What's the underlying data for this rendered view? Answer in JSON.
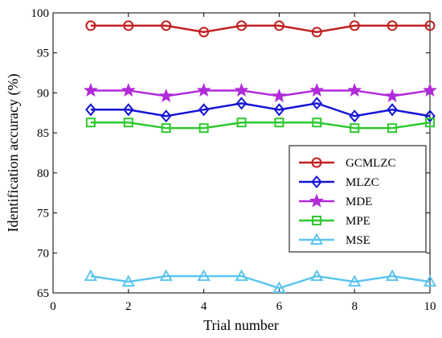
{
  "chart_data": {
    "type": "line",
    "title": "",
    "xlabel": "Trial number",
    "ylabel": "Identification accuracy (%)",
    "xlim": [
      0,
      10
    ],
    "ylim": [
      65,
      100
    ],
    "xticks": [
      0,
      2,
      4,
      6,
      8,
      10
    ],
    "yticks": [
      65,
      70,
      75,
      80,
      85,
      90,
      95,
      100
    ],
    "grid": false,
    "legend_position": "center-right",
    "x": [
      1,
      2,
      3,
      4,
      5,
      6,
      7,
      8,
      9,
      10
    ],
    "series": [
      {
        "name": "GCMLZC",
        "color": "#c0211f",
        "marker": "circle",
        "values": [
          98.4,
          98.4,
          98.4,
          97.6,
          98.4,
          98.4,
          97.6,
          98.4,
          98.4,
          98.4
        ]
      },
      {
        "name": "MLZC",
        "color": "#1515d6",
        "marker": "diamond",
        "values": [
          87.9,
          87.9,
          87.1,
          87.9,
          88.7,
          87.9,
          88.7,
          87.1,
          87.9,
          87.1
        ]
      },
      {
        "name": "MDE",
        "color": "#b12ad8",
        "marker": "star",
        "values": [
          90.3,
          90.3,
          89.6,
          90.3,
          90.3,
          89.6,
          90.3,
          90.3,
          89.6,
          90.3
        ]
      },
      {
        "name": "MPE",
        "color": "#2fc82f",
        "marker": "square",
        "values": [
          86.3,
          86.3,
          85.6,
          85.6,
          86.3,
          86.3,
          86.3,
          85.6,
          85.6,
          86.3
        ]
      },
      {
        "name": "MSE",
        "color": "#5cc5ee",
        "marker": "triangle",
        "values": [
          67.1,
          66.4,
          67.1,
          67.1,
          67.1,
          65.6,
          67.1,
          66.4,
          67.1,
          66.4
        ]
      }
    ]
  }
}
